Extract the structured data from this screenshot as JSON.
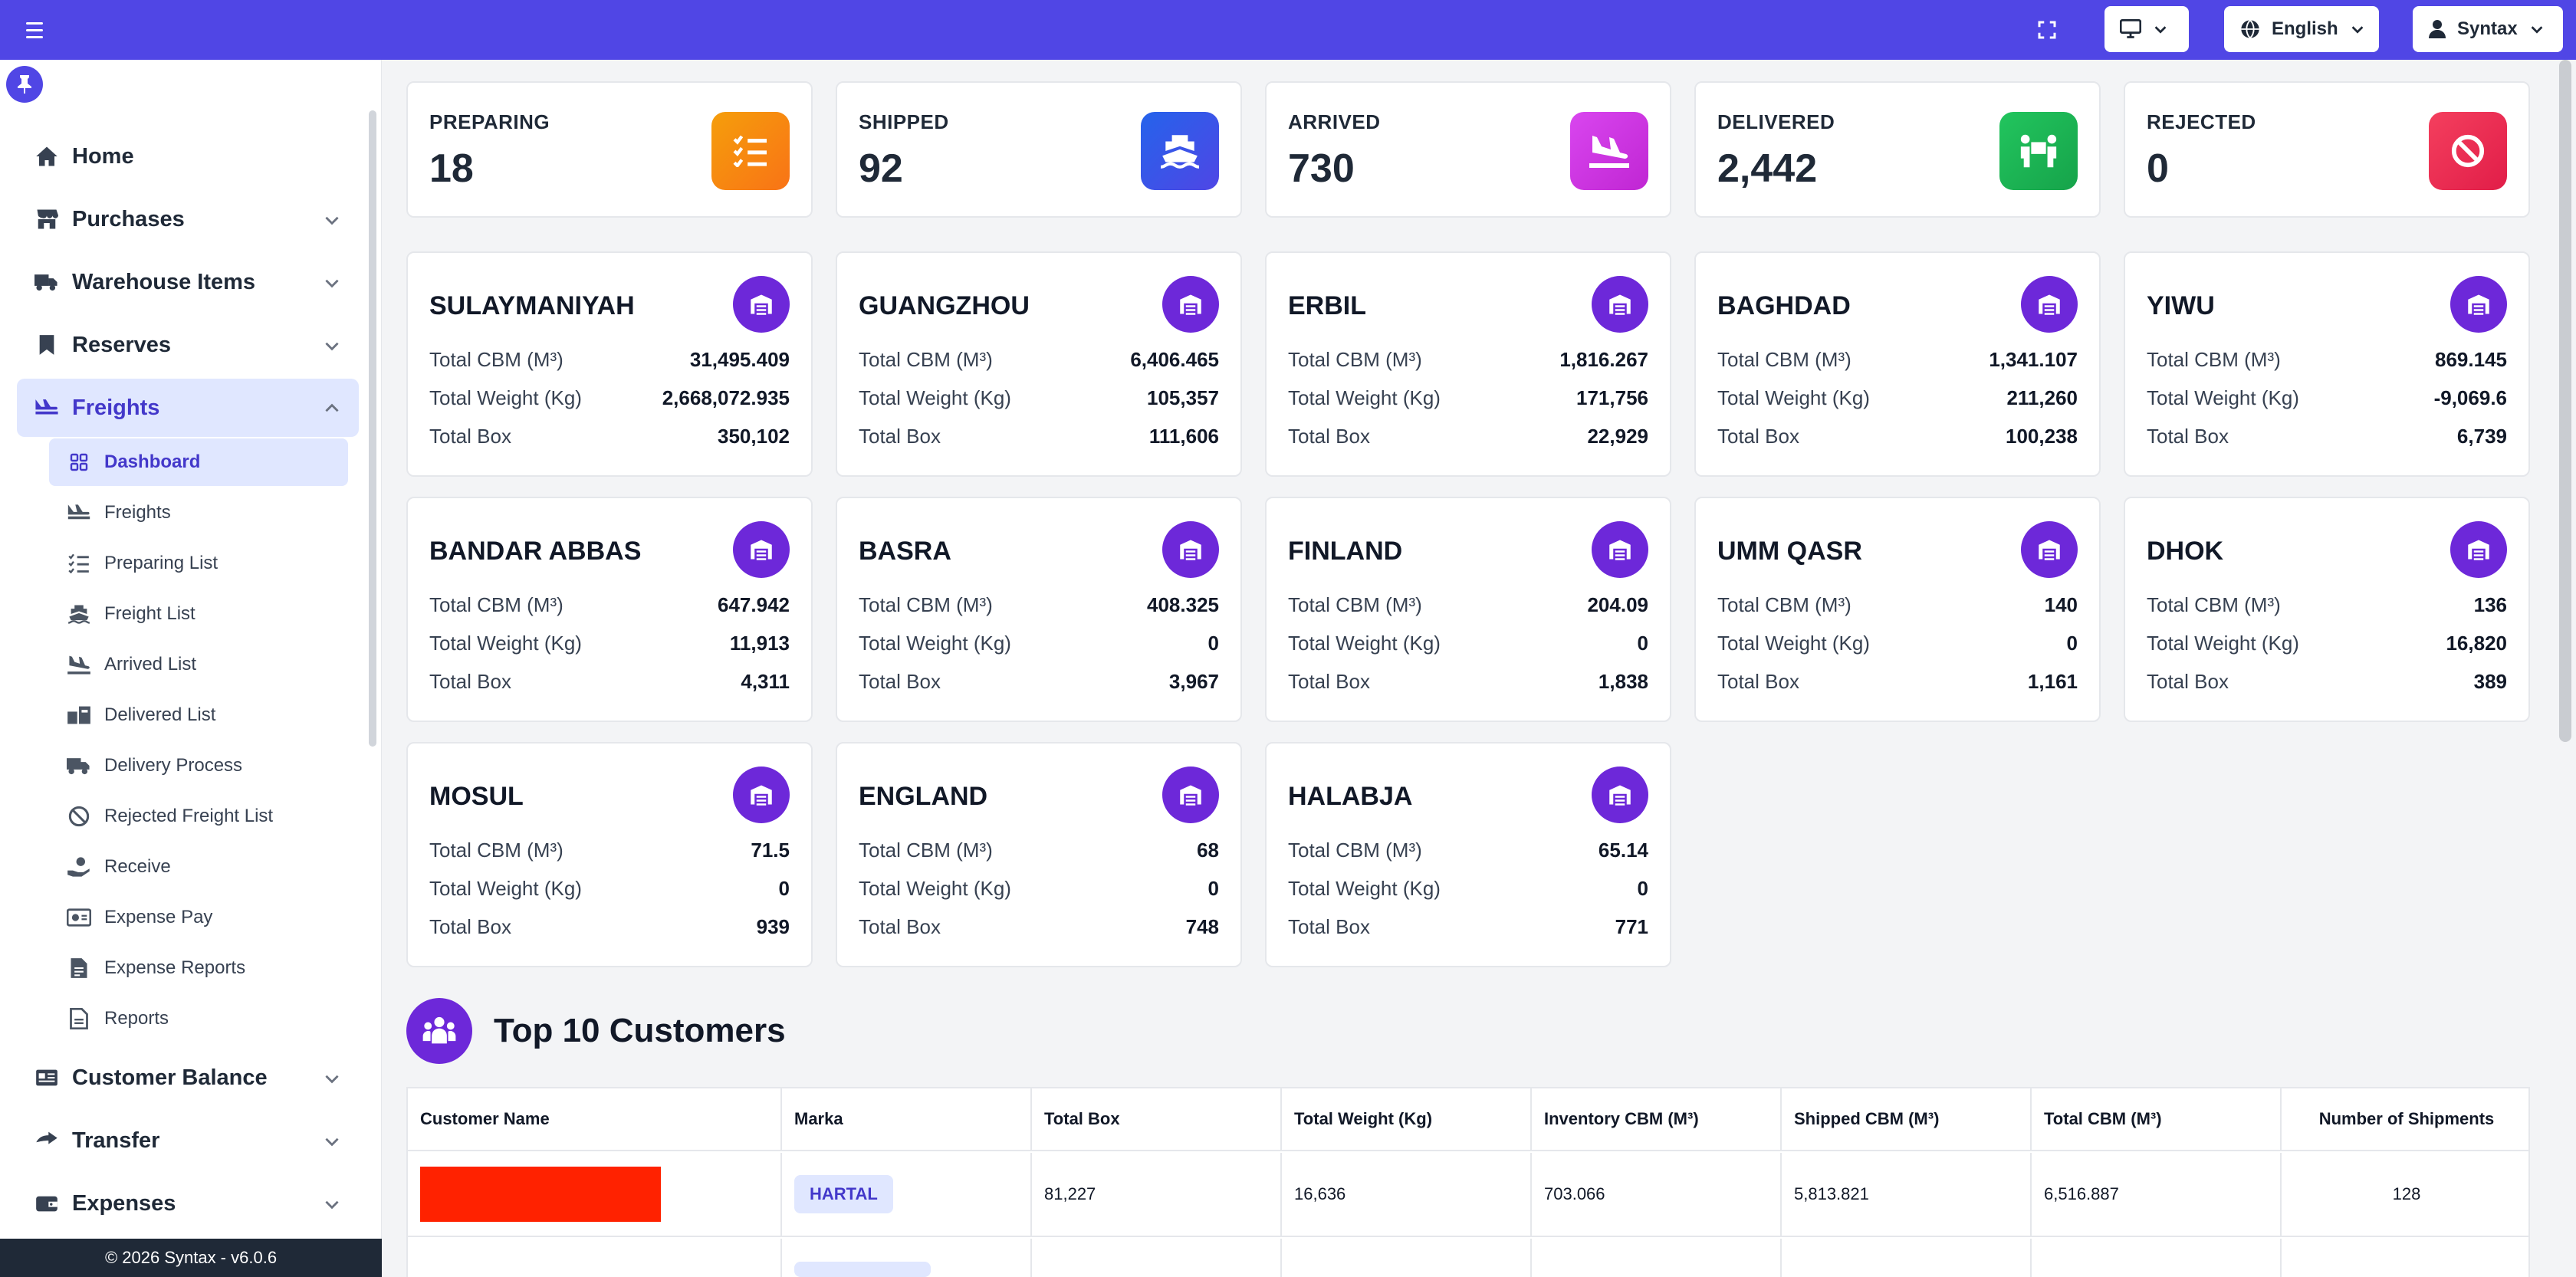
{
  "topbar": {
    "language": "English",
    "user": "Syntax"
  },
  "sidebar": {
    "menu": [
      {
        "label": "Home",
        "icon": "home-icon"
      },
      {
        "label": "Purchases",
        "icon": "store-icon"
      },
      {
        "label": "Warehouse Items",
        "icon": "truck-icon"
      },
      {
        "label": "Reserves",
        "icon": "bookmark-icon"
      },
      {
        "label": "Freights",
        "icon": "freight-icon"
      },
      {
        "label": "Customer Balance",
        "icon": "id-card-icon"
      },
      {
        "label": "Transfer",
        "icon": "transfer-icon"
      },
      {
        "label": "Expenses",
        "icon": "wallet-icon"
      }
    ],
    "submenu": [
      {
        "label": "Dashboard",
        "icon": "grid-icon"
      },
      {
        "label": "Freights",
        "icon": "freight-icon"
      },
      {
        "label": "Preparing List",
        "icon": "checklist-icon"
      },
      {
        "label": "Freight List",
        "icon": "ship-icon"
      },
      {
        "label": "Arrived List",
        "icon": "plane-arrival-icon"
      },
      {
        "label": "Delivered List",
        "icon": "boxes-icon"
      },
      {
        "label": "Delivery Process",
        "icon": "truck-icon"
      },
      {
        "label": "Rejected Freight List",
        "icon": "ban-icon"
      },
      {
        "label": "Receive",
        "icon": "hand-holding-icon"
      },
      {
        "label": "Expense Pay",
        "icon": "money-check-icon"
      },
      {
        "label": "Expense Reports",
        "icon": "file-invoice-icon"
      },
      {
        "label": "Reports",
        "icon": "file-icon"
      }
    ],
    "footer": "© 2026 Syntax - v6.0.6"
  },
  "stats": [
    {
      "label": "PREPARING",
      "value": "18",
      "color": "#f97316",
      "icon": "checklist-icon"
    },
    {
      "label": "SHIPPED",
      "value": "92",
      "color": "#4f46e5",
      "icon": "ship-icon"
    },
    {
      "label": "ARRIVED",
      "value": "730",
      "color": "#c026d3",
      "icon": "plane-arrival-icon"
    },
    {
      "label": "DELIVERED",
      "value": "2,442",
      "color": "#16a34a",
      "icon": "people-carry-icon"
    },
    {
      "label": "REJECTED",
      "value": "0",
      "color": "#e11d48",
      "icon": "ban-icon"
    }
  ],
  "warehouse_labels": {
    "cbm": "Total CBM (M³)",
    "weight": "Total Weight (Kg)",
    "box": "Total Box"
  },
  "warehouses": [
    {
      "name": "SULAYMANIYAH",
      "cbm": "31,495.409",
      "weight": "2,668,072.935",
      "box": "350,102"
    },
    {
      "name": "GUANGZHOU",
      "cbm": "6,406.465",
      "weight": "105,357",
      "box": "111,606"
    },
    {
      "name": "ERBIL",
      "cbm": "1,816.267",
      "weight": "171,756",
      "box": "22,929"
    },
    {
      "name": "BAGHDAD",
      "cbm": "1,341.107",
      "weight": "211,260",
      "box": "100,238"
    },
    {
      "name": "YIWU",
      "cbm": "869.145",
      "weight": "-9,069.6",
      "box": "6,739"
    },
    {
      "name": "BANDAR ABBAS",
      "cbm": "647.942",
      "weight": "11,913",
      "box": "4,311"
    },
    {
      "name": "BASRA",
      "cbm": "408.325",
      "weight": "0",
      "box": "3,967"
    },
    {
      "name": "FINLAND",
      "cbm": "204.09",
      "weight": "0",
      "box": "1,838"
    },
    {
      "name": "UMM QASR",
      "cbm": "140",
      "weight": "0",
      "box": "1,161"
    },
    {
      "name": "DHOK",
      "cbm": "136",
      "weight": "16,820",
      "box": "389"
    },
    {
      "name": "MOSUL",
      "cbm": "71.5",
      "weight": "0",
      "box": "939"
    },
    {
      "name": "ENGLAND",
      "cbm": "68",
      "weight": "0",
      "box": "748"
    },
    {
      "name": "HALABJA",
      "cbm": "65.14",
      "weight": "0",
      "box": "771"
    }
  ],
  "top10": {
    "title": "Top 10 Customers",
    "columns": [
      "Customer Name",
      "Marka",
      "Total Box",
      "Total Weight (Kg)",
      "Inventory CBM (M³)",
      "Shipped CBM (M³)",
      "Total CBM (M³)",
      "Number of Shipments"
    ],
    "rows": [
      {
        "marka": "HARTAL",
        "total_box": "81,227",
        "total_weight": "16,636",
        "inventory_cbm": "703.066",
        "shipped_cbm": "5,813.821",
        "total_cbm": "6,516.887",
        "shipments": "128",
        "redacted_color": "#ff2200"
      }
    ]
  }
}
